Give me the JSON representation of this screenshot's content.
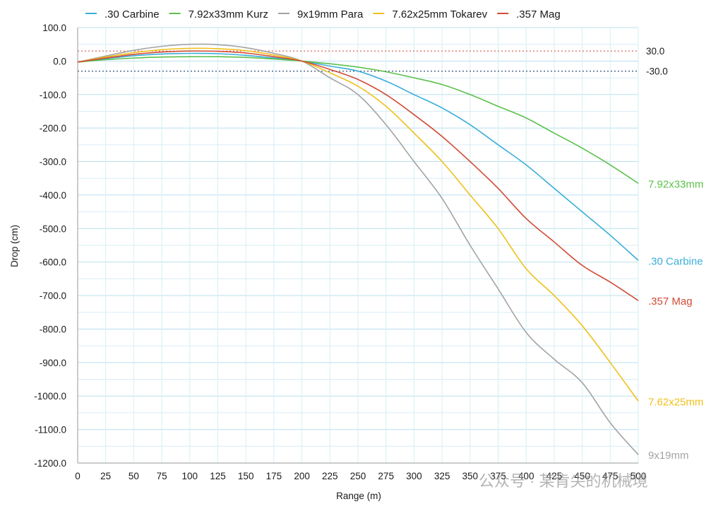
{
  "watermark": "公众号 · 某肯尖的机械境",
  "colors": {
    "grid_minor": "#d7eef6",
    "grid_major": "#b9e0ee",
    "axis": "#9a9a9a",
    "ref_upper": "#d9534f",
    "ref_lower": "#35507a"
  },
  "chart_data": {
    "type": "line",
    "title": "",
    "xlabel": "Range (m)",
    "ylabel": "Drop (cm)",
    "xlim": [
      0,
      500
    ],
    "ylim": [
      -1200,
      100
    ],
    "x_ticks": [
      "0",
      "25",
      "50",
      "75",
      "100",
      "125",
      "150",
      "175",
      "200",
      "225",
      "250",
      "275",
      "300",
      "325",
      "350",
      "375",
      "400",
      "425",
      "450",
      "475",
      "500"
    ],
    "y_ticks": [
      "100.0",
      "0.0",
      "-100.0",
      "-200.0",
      "-300.0",
      "-400.0",
      "-500.0",
      "-600.0",
      "-700.0",
      "-800.0",
      "-900.0",
      "-1000.0",
      "-1100.0",
      "-1200.0"
    ],
    "grid": true,
    "legend_position": "top",
    "reference_lines": [
      {
        "value": 30,
        "label": "30.0",
        "color": "#d9534f"
      },
      {
        "value": -30,
        "label": "-30.0",
        "color": "#35507a"
      }
    ],
    "x": [
      0,
      25,
      50,
      75,
      100,
      125,
      150,
      175,
      200,
      225,
      250,
      275,
      300,
      325,
      350,
      375,
      400,
      425,
      450,
      475,
      500
    ],
    "series": [
      {
        "name": ".30 Carbine",
        "end_label": ".30 Carbine",
        "color": "#3aaed8",
        "values": [
          -3,
          7,
          16,
          21,
          23,
          22,
          17,
          9,
          0,
          -15,
          -30,
          -60,
          -100,
          -140,
          -190,
          -250,
          -310,
          -380,
          -450,
          -520,
          -595
        ]
      },
      {
        "name": "7.92x33mm Kurz",
        "end_label": "7.92x33mm",
        "color": "#5cc04a",
        "values": [
          -3,
          4,
          9,
          12,
          13,
          13,
          11,
          6,
          0,
          -8,
          -18,
          -32,
          -50,
          -70,
          -100,
          -135,
          -170,
          -215,
          -260,
          -310,
          -365
        ]
      },
      {
        "name": "9x19mm Para",
        "end_label": "9x19mm",
        "color": "#a3a3a3",
        "values": [
          -3,
          15,
          32,
          44,
          50,
          49,
          40,
          23,
          0,
          -50,
          -100,
          -190,
          -300,
          -410,
          -550,
          -680,
          -810,
          -890,
          -960,
          -1080,
          -1175
        ]
      },
      {
        "name": "7.62x25mm Tokarev",
        "end_label": "7.62x25mm",
        "color": "#f0c01a",
        "values": [
          -3,
          12,
          25,
          34,
          38,
          37,
          31,
          18,
          0,
          -35,
          -75,
          -135,
          -215,
          -300,
          -400,
          -500,
          -620,
          -700,
          -790,
          -900,
          -1015
        ]
      },
      {
        "name": ".357 Mag",
        "end_label": ".357 Mag",
        "color": "#d24a36",
        "values": [
          -3,
          9,
          20,
          27,
          30,
          29,
          24,
          13,
          0,
          -25,
          -55,
          -100,
          -160,
          -225,
          -300,
          -380,
          -470,
          -540,
          -610,
          -660,
          -715
        ]
      }
    ]
  }
}
